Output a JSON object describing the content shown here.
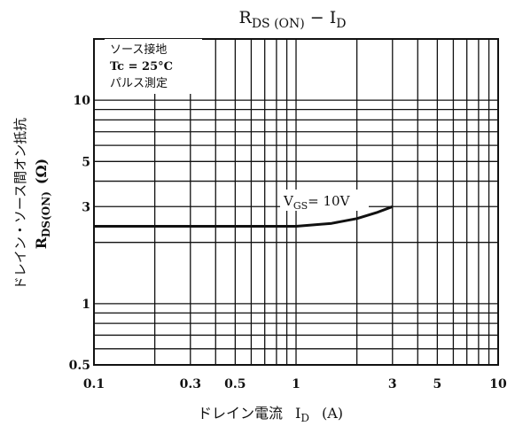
{
  "chart_data": {
    "type": "line",
    "title": {
      "main": "R",
      "sub": "DS (ON)",
      "sep": " − ",
      "main2": "I",
      "sub2": "D"
    },
    "xlabel": {
      "jp": "ドレイン電流",
      "main": "I",
      "sub": "D",
      "unit": "(A)"
    },
    "ylabel": {
      "jp": "ドレイン・ソース間オン抵抗",
      "main": "R",
      "sub": "DS(ON)",
      "unit": "(Ω)"
    },
    "x_scale": "log",
    "y_scale": "log",
    "xlim": [
      0.1,
      10
    ],
    "ylim": [
      0.5,
      20
    ],
    "x_ticks": [
      {
        "value": 0.1,
        "label": "0.1"
      },
      {
        "value": 0.3,
        "label": "0.3"
      },
      {
        "value": 0.5,
        "label": "0.5"
      },
      {
        "value": 1,
        "label": "1"
      },
      {
        "value": 3,
        "label": "3"
      },
      {
        "value": 5,
        "label": "5"
      },
      {
        "value": 10,
        "label": "10"
      }
    ],
    "y_ticks": [
      {
        "value": 0.5,
        "label": "0.5"
      },
      {
        "value": 1,
        "label": "1"
      },
      {
        "value": 3,
        "label": "3"
      },
      {
        "value": 5,
        "label": "5"
      },
      {
        "value": 10,
        "label": "10"
      }
    ],
    "grid": true,
    "conditions": [
      "ソース接地",
      "Tc = 25°C",
      "パルス測定"
    ],
    "series": [
      {
        "label": {
          "main": "V",
          "sub": "GS",
          "rest": "= 10V"
        },
        "x": [
          0.1,
          0.5,
          1.0,
          1.5,
          2.0,
          2.5,
          3.0
        ],
        "y": [
          2.4,
          2.4,
          2.4,
          2.48,
          2.62,
          2.8,
          3.0
        ]
      }
    ]
  }
}
